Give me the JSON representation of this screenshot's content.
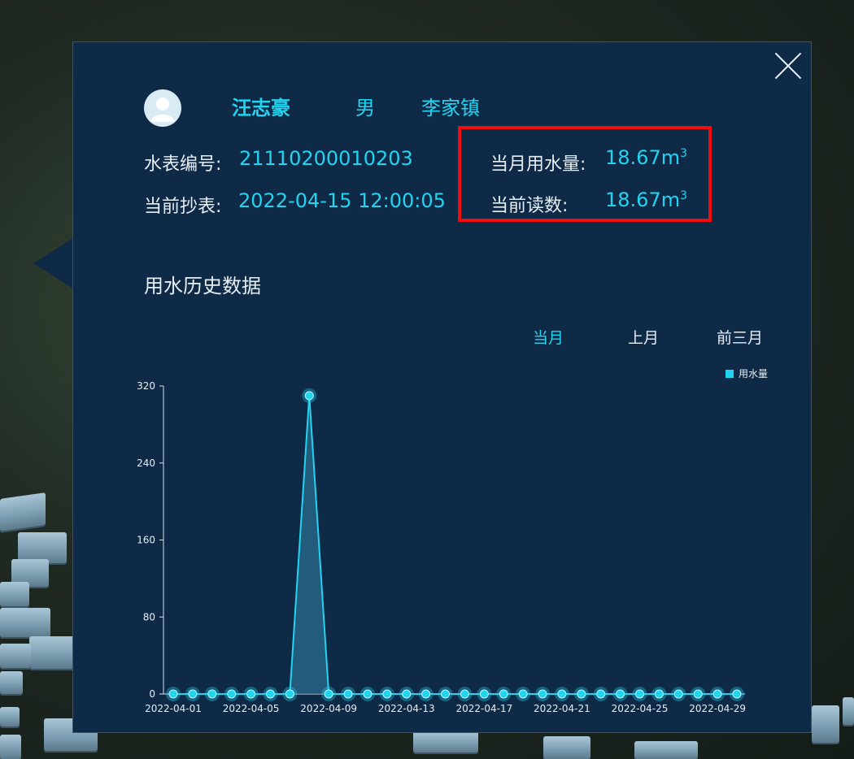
{
  "close_label": "close",
  "user": {
    "name": "汪志豪",
    "gender": "男",
    "town": "李家镇"
  },
  "meter": {
    "id_label": "水表编号:",
    "id_value": "21110200010203",
    "read_time_label": "当前抄表:",
    "read_time_value": "2022-04-15 12:00:05",
    "month_usage_label": "当月用水量:",
    "month_usage_value": "18.67m",
    "current_reading_label": "当前读数:",
    "current_reading_value": "18.67m",
    "unit_superscript": "3"
  },
  "history": {
    "title": "用水历史数据",
    "tabs": [
      {
        "label": "当月",
        "active": true
      },
      {
        "label": "上月",
        "active": false
      },
      {
        "label": "前三月",
        "active": false
      }
    ]
  },
  "colors": {
    "accent": "#21d4f0",
    "panel": "#0f2a47",
    "highlight_border": "#f20d0d"
  },
  "chart_data": {
    "type": "line",
    "legend": "用水量",
    "legend_position": "top-right",
    "ylim": [
      0,
      320
    ],
    "yticks": [
      0,
      80,
      160,
      240,
      320
    ],
    "xtick_labels": [
      "2022-04-01",
      "2022-04-05",
      "2022-04-09",
      "2022-04-13",
      "2022-04-17",
      "2022-04-21",
      "2022-04-25",
      "2022-04-29"
    ],
    "x": [
      "2022-04-01",
      "2022-04-02",
      "2022-04-03",
      "2022-04-04",
      "2022-04-05",
      "2022-04-06",
      "2022-04-07",
      "2022-04-08",
      "2022-04-09",
      "2022-04-10",
      "2022-04-11",
      "2022-04-12",
      "2022-04-13",
      "2022-04-14",
      "2022-04-15",
      "2022-04-16",
      "2022-04-17",
      "2022-04-18",
      "2022-04-19",
      "2022-04-20",
      "2022-04-21",
      "2022-04-22",
      "2022-04-23",
      "2022-04-24",
      "2022-04-25",
      "2022-04-26",
      "2022-04-27",
      "2022-04-28",
      "2022-04-29",
      "2022-04-30"
    ],
    "series": [
      {
        "name": "用水量",
        "values": [
          0,
          0,
          0,
          0,
          0,
          0,
          0,
          310,
          0,
          0,
          0,
          0,
          0,
          0,
          0,
          0,
          0,
          0,
          0,
          0,
          0,
          0,
          0,
          0,
          0,
          0,
          0,
          0,
          0,
          0
        ]
      }
    ]
  }
}
